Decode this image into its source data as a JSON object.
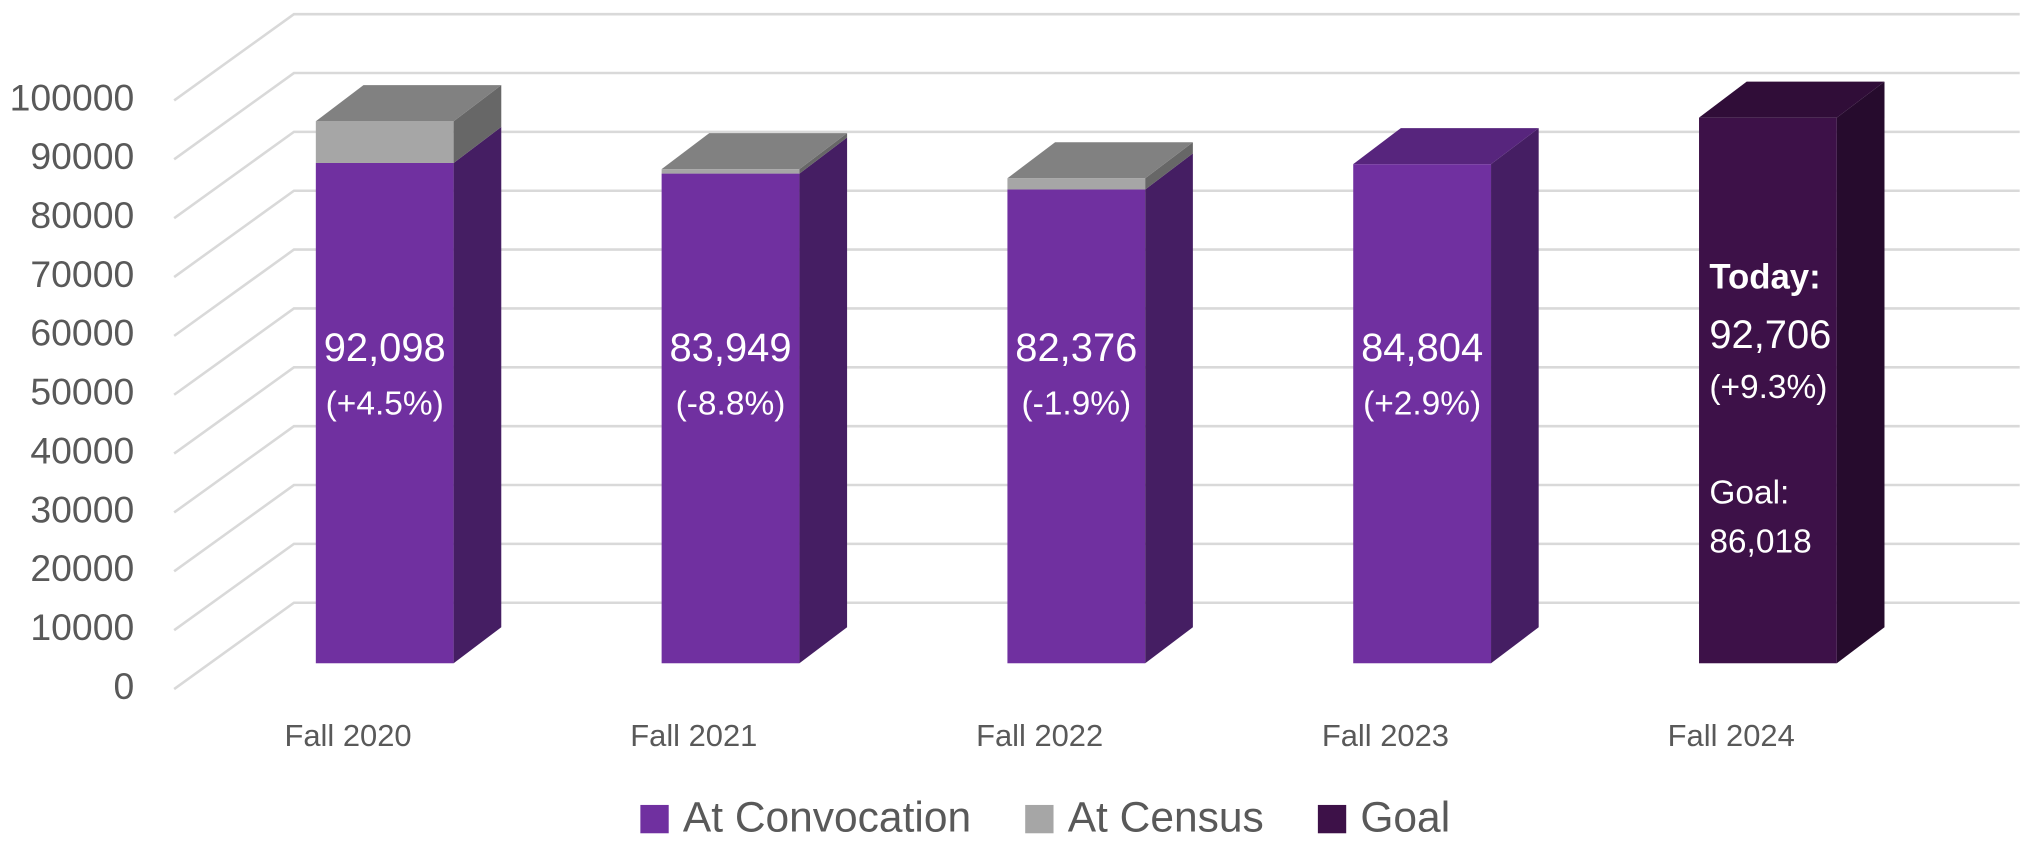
{
  "chart_data": {
    "type": "bar3d_stacked",
    "categories": [
      "Fall 2020",
      "Fall 2021",
      "Fall 2022",
      "Fall 2023",
      "Fall 2024"
    ],
    "series": [
      {
        "name": "At Convocation",
        "color": "#7030a0",
        "values": [
          85000,
          83200,
          80500,
          84800,
          null
        ]
      },
      {
        "name": "At Census",
        "color": "#a6a6a6",
        "values": [
          7100,
          750,
          1900,
          null,
          null
        ]
      },
      {
        "name": "Goal",
        "color": "#3d1148",
        "values": [
          null,
          null,
          null,
          null,
          92700
        ]
      }
    ],
    "data_labels": [
      [
        "92,098",
        "(+4.5%)"
      ],
      [
        "83,949",
        "(-8.8%)"
      ],
      [
        "82,376",
        "(-1.9%)"
      ],
      [
        "84,804",
        "(+2.9%)"
      ],
      [
        "Today:",
        "92,706",
        "(+9.3%)",
        "Goal:",
        "86,018"
      ]
    ],
    "ylim": [
      0,
      100000
    ],
    "yticks": [
      0,
      10000,
      20000,
      30000,
      40000,
      50000,
      60000,
      70000,
      80000,
      90000,
      100000
    ],
    "grid": true,
    "legend": "bottom"
  }
}
